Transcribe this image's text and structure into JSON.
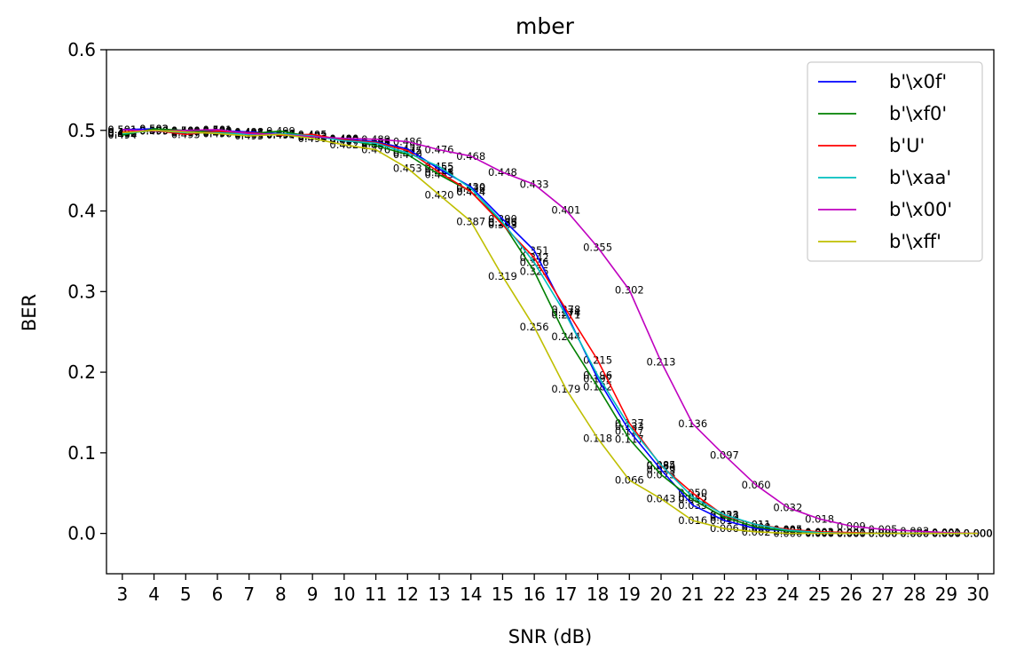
{
  "chart_data": {
    "type": "line",
    "title": "mber",
    "xlabel": "SNR (dB)",
    "ylabel": "BER",
    "xlim": [
      2.5,
      30.5
    ],
    "ylim": [
      -0.05,
      0.6
    ],
    "xticks": [
      3,
      4,
      5,
      6,
      7,
      8,
      9,
      10,
      11,
      12,
      13,
      14,
      15,
      16,
      17,
      18,
      19,
      20,
      21,
      22,
      23,
      24,
      25,
      26,
      27,
      28,
      29,
      30
    ],
    "yticks": [
      0.0,
      0.1,
      0.2,
      0.3,
      0.4,
      0.5,
      0.6
    ],
    "ytick_labels": [
      "0.0",
      "0.1",
      "0.2",
      "0.3",
      "0.4",
      "0.5",
      "0.6"
    ],
    "legend_position": "upper right",
    "grid": false,
    "x": [
      3,
      4,
      5,
      6,
      7,
      8,
      9,
      10,
      11,
      12,
      13,
      14,
      15,
      16,
      17,
      18,
      19,
      20,
      21,
      22,
      23,
      24,
      25,
      26,
      27,
      28,
      29,
      30
    ],
    "series": [
      {
        "name": "b'\\x0f'",
        "color": "#0000ff",
        "values": [
          0.501,
          0.502,
          0.499,
          0.5,
          0.498,
          0.496,
          0.493,
          0.489,
          0.486,
          0.477,
          0.452,
          0.43,
          0.39,
          0.351,
          0.274,
          0.192,
          0.127,
          0.079,
          0.035,
          0.016,
          0.006,
          0.003,
          0.001,
          0.0,
          0.0,
          0.0,
          0.0,
          0.0
        ]
      },
      {
        "name": "b'\\xf0'",
        "color": "#008000",
        "values": [
          0.494,
          0.502,
          0.5,
          0.498,
          0.496,
          0.499,
          0.492,
          0.489,
          0.481,
          0.47,
          0.445,
          0.424,
          0.385,
          0.325,
          0.244,
          0.182,
          0.117,
          0.073,
          0.042,
          0.02,
          0.008,
          0.003,
          0.001,
          0.0,
          0.0,
          0.0,
          0.0,
          0.0
        ]
      },
      {
        "name": "b'U'",
        "color": "#ff0000",
        "values": [
          0.498,
          0.5,
          0.495,
          0.499,
          0.497,
          0.494,
          0.495,
          0.488,
          0.485,
          0.475,
          0.448,
          0.424,
          0.383,
          0.342,
          0.278,
          0.215,
          0.137,
          0.084,
          0.05,
          0.022,
          0.011,
          0.005,
          0.002,
          0.001,
          0.0,
          0.0,
          0.0,
          0.0
        ]
      },
      {
        "name": "b'\\xaa'",
        "color": "#00bfbf",
        "values": [
          0.496,
          0.5,
          0.497,
          0.497,
          0.495,
          0.496,
          0.493,
          0.487,
          0.484,
          0.472,
          0.455,
          0.428,
          0.386,
          0.336,
          0.271,
          0.196,
          0.133,
          0.085,
          0.045,
          0.023,
          0.011,
          0.004,
          0.001,
          0.0,
          0.0,
          0.0,
          0.0,
          0.0
        ]
      },
      {
        "name": "b'\\x00'",
        "color": "#bf00bf",
        "values": [
          0.501,
          0.499,
          0.5,
          0.501,
          0.496,
          0.495,
          0.492,
          0.49,
          0.489,
          0.486,
          0.476,
          0.468,
          0.448,
          0.433,
          0.401,
          0.355,
          0.302,
          0.213,
          0.136,
          0.097,
          0.06,
          0.032,
          0.018,
          0.009,
          0.005,
          0.003,
          0.001,
          0.0
        ]
      },
      {
        "name": "b'\\xff'",
        "color": "#bfbf00",
        "values": [
          0.497,
          0.5,
          0.498,
          0.496,
          0.493,
          0.495,
          0.49,
          0.482,
          0.476,
          0.453,
          0.42,
          0.387,
          0.319,
          0.256,
          0.179,
          0.118,
          0.066,
          0.043,
          0.016,
          0.006,
          0.002,
          0.0,
          0.0,
          0.0,
          0.0,
          0.0,
          0.0,
          0.0
        ]
      }
    ]
  }
}
